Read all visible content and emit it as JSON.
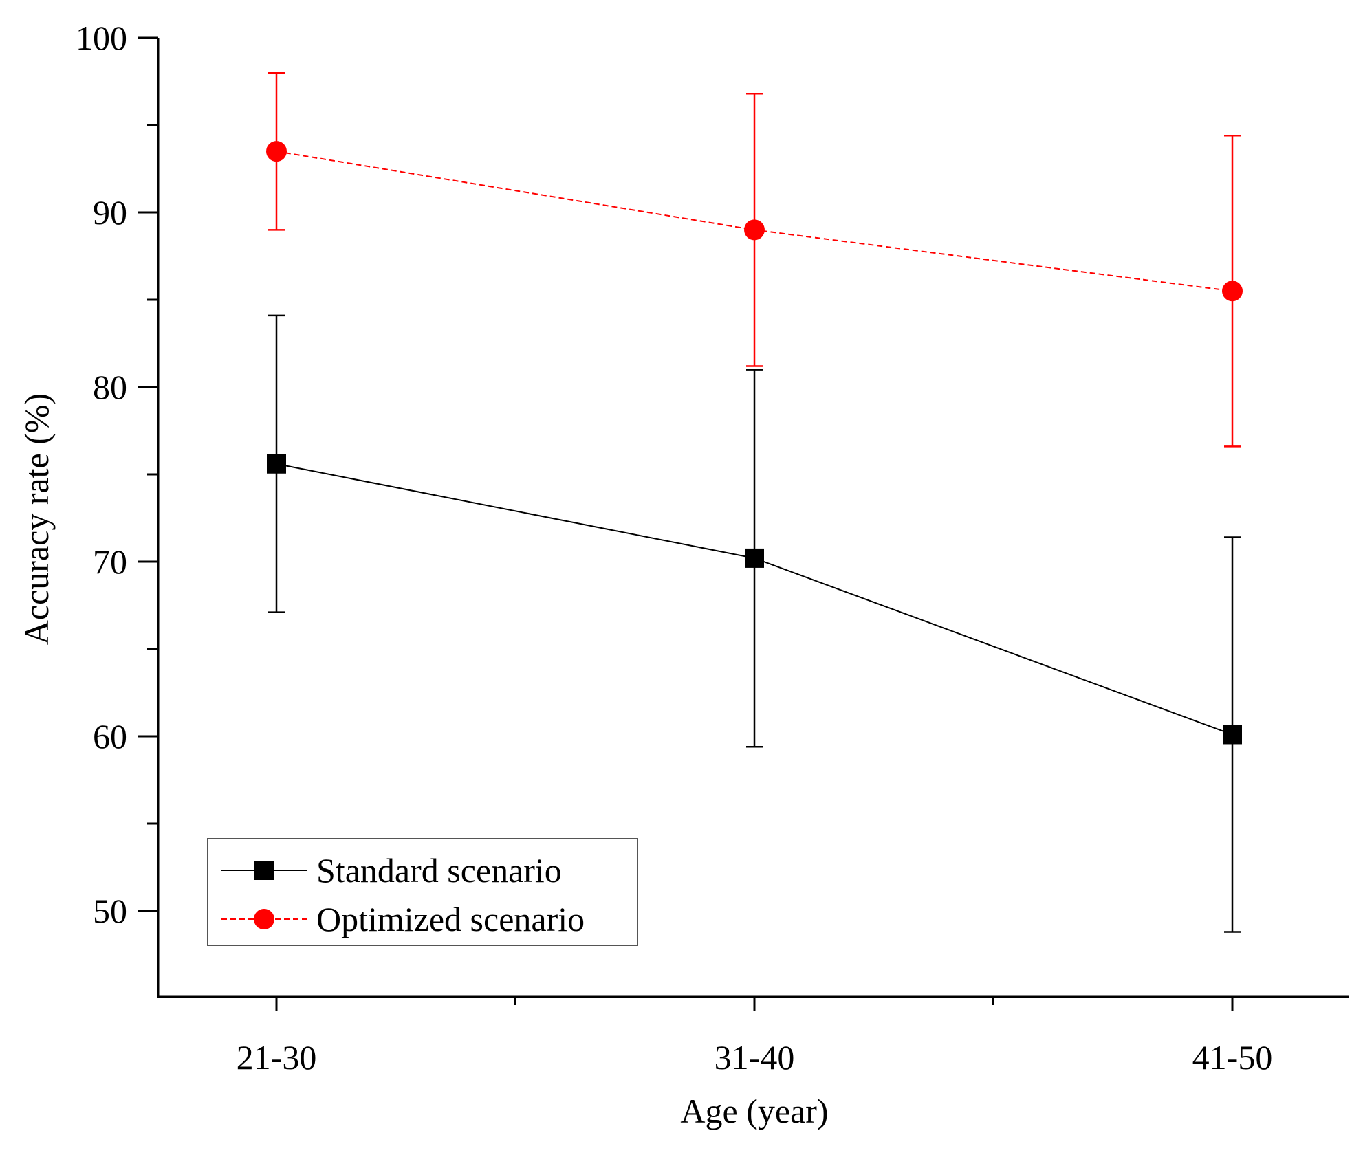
{
  "chart_data": {
    "type": "line",
    "categories": [
      "21-30",
      "31-40",
      "41-50"
    ],
    "xlabel": "Age (year)",
    "ylabel": "Accuracy rate (%)",
    "ylim": [
      45,
      100
    ],
    "yticks": [
      50,
      60,
      70,
      80,
      90,
      100
    ],
    "yticks_minor": [
      55,
      65,
      75,
      85,
      95
    ],
    "series": [
      {
        "name": "Standard scenario",
        "marker": "square",
        "line_style": "solid",
        "color": "#000000",
        "values": [
          75.6,
          70.2,
          60.1
        ],
        "error_low": [
          67.1,
          59.4,
          48.8
        ],
        "error_high": [
          84.1,
          81.0,
          71.4
        ]
      },
      {
        "name": "Optimized scenario",
        "marker": "circle",
        "line_style": "dashed",
        "color": "#ff0000",
        "values": [
          93.5,
          89.0,
          85.5
        ],
        "error_low": [
          89.0,
          81.2,
          76.6
        ],
        "error_high": [
          98.0,
          96.8,
          94.4
        ]
      }
    ],
    "legend_position": "bottom-left",
    "grid": false
  }
}
